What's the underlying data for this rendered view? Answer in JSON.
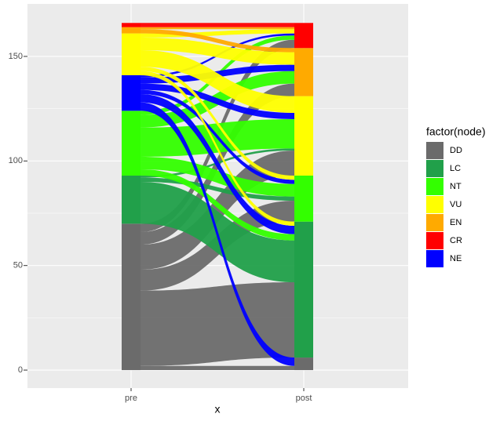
{
  "chart_data": {
    "type": "alluvial",
    "x_label": "x",
    "legend_title": "factor(node)",
    "categories": [
      "pre",
      "post"
    ],
    "series": [
      {
        "name": "DD",
        "color": "#6b6b6b",
        "values": [
          70,
          6
        ]
      },
      {
        "name": "LC",
        "color": "#21a04a",
        "values": [
          23,
          65
        ]
      },
      {
        "name": "NT",
        "color": "#33ff00",
        "values": [
          31,
          22
        ]
      },
      {
        "name": "VU",
        "color": "#ffff00",
        "values": [
          20,
          38
        ]
      },
      {
        "name": "EN",
        "color": "#ffaa00",
        "values": [
          3,
          23
        ]
      },
      {
        "name": "CR",
        "color": "#ff0000",
        "values": [
          2,
          12
        ]
      },
      {
        "name": "NE",
        "color": "#0000ff",
        "values": [
          17,
          0
        ]
      }
    ],
    "flows": [
      {
        "from": "DD",
        "to": "DD",
        "value": 2
      },
      {
        "from": "DD",
        "to": "LC",
        "value": 36
      },
      {
        "from": "DD",
        "to": "NT",
        "value": 10
      },
      {
        "from": "DD",
        "to": "VU",
        "value": 12
      },
      {
        "from": "DD",
        "to": "EN",
        "value": 6
      },
      {
        "from": "DD",
        "to": "CR",
        "value": 4
      },
      {
        "from": "LC",
        "to": "LC",
        "value": 20
      },
      {
        "from": "LC",
        "to": "NT",
        "value": 2
      },
      {
        "from": "LC",
        "to": "VU",
        "value": 1
      },
      {
        "from": "NT",
        "to": "LC",
        "value": 3
      },
      {
        "from": "NT",
        "to": "NT",
        "value": 6
      },
      {
        "from": "NT",
        "to": "VU",
        "value": 14
      },
      {
        "from": "NT",
        "to": "EN",
        "value": 6
      },
      {
        "from": "NT",
        "to": "CR",
        "value": 2
      },
      {
        "from": "NE",
        "to": "DD",
        "value": 4
      },
      {
        "from": "NE",
        "to": "LC",
        "value": 4
      },
      {
        "from": "NE",
        "to": "NT",
        "value": 2
      },
      {
        "from": "NE",
        "to": "VU",
        "value": 3
      },
      {
        "from": "NE",
        "to": "EN",
        "value": 3
      },
      {
        "from": "NE",
        "to": "CR",
        "value": 1
      },
      {
        "from": "VU",
        "to": "LC",
        "value": 2
      },
      {
        "from": "VU",
        "to": "NT",
        "value": 2
      },
      {
        "from": "VU",
        "to": "VU",
        "value": 8
      },
      {
        "from": "VU",
        "to": "EN",
        "value": 6
      },
      {
        "from": "VU",
        "to": "CR",
        "value": 2
      },
      {
        "from": "EN",
        "to": "EN",
        "value": 2
      },
      {
        "from": "EN",
        "to": "CR",
        "value": 1
      },
      {
        "from": "CR",
        "to": "CR",
        "value": 2
      }
    ],
    "ylim": [
      -8.6,
      175.1
    ],
    "yticks": [
      0,
      50,
      100,
      150
    ],
    "grid": true
  }
}
